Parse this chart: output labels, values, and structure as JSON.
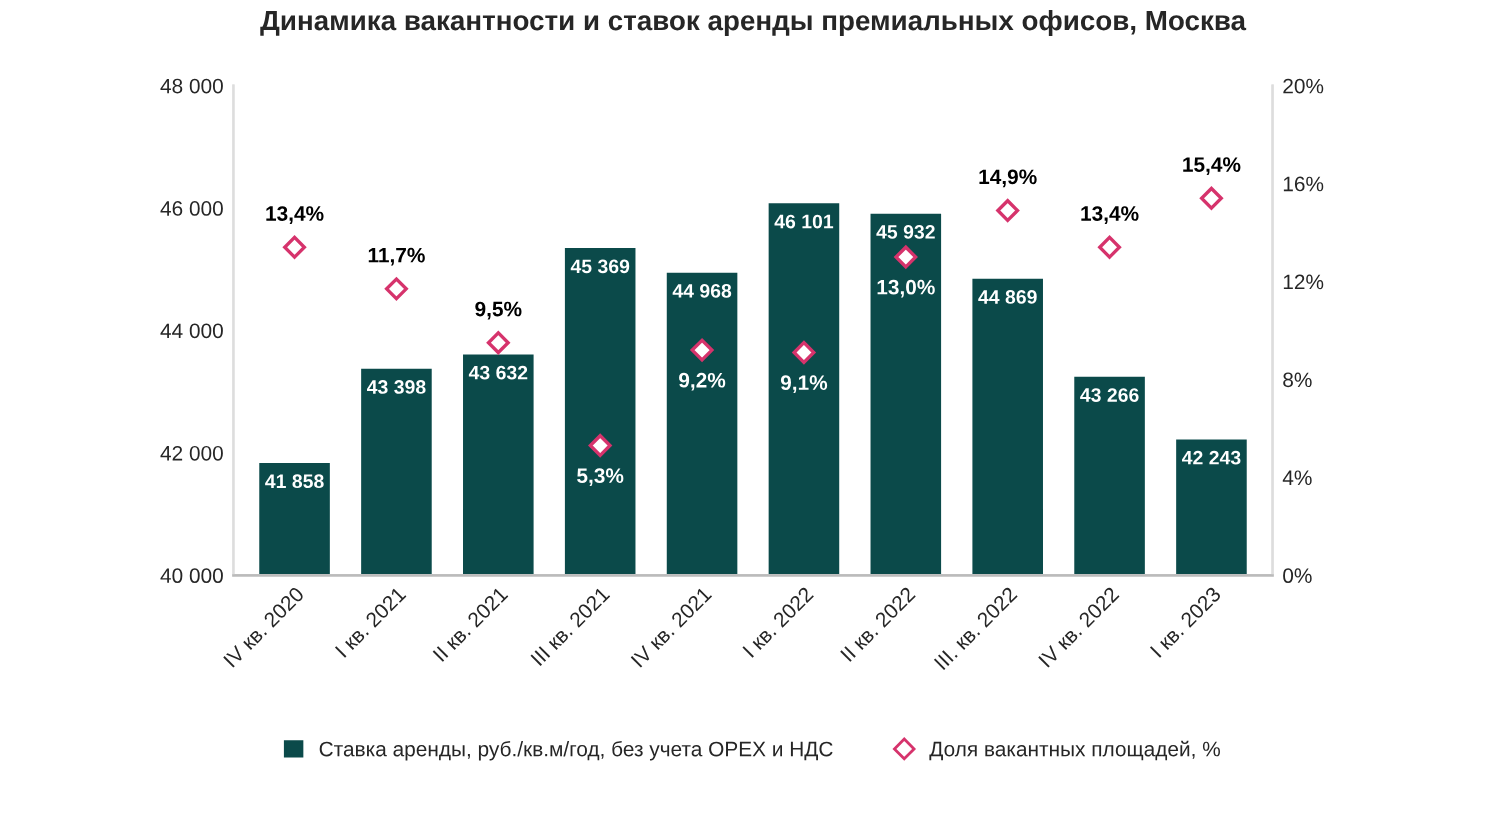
{
  "chart_data": {
    "type": "bar",
    "title": "Динамика вакантности и ставок аренды премиальных офисов, Москва",
    "categories": [
      "IV кв. 2020",
      "I кв. 2021",
      "II кв. 2021",
      "III кв. 2021",
      "IV кв. 2021",
      "I кв. 2022",
      "II кв. 2022",
      "III. кв. 2022",
      "IV кв. 2022",
      "I кв. 2023"
    ],
    "series": [
      {
        "name": "Ставка аренды, руб./кв.м/год, без учета OPEX и НДС",
        "color": "#0b4a4a",
        "values": [
          41858,
          43398,
          43632,
          45369,
          44968,
          46101,
          45932,
          44869,
          43266,
          42243
        ],
        "value_labels": [
          "41 858",
          "43 398",
          "43 632",
          "45 369",
          "44 968",
          "46 101",
          "45 932",
          "44 869",
          "43 266",
          "42 243"
        ]
      },
      {
        "name": "Доля вакантных площадей, %",
        "type": "scatter",
        "axis": "y2",
        "marker": "diamond",
        "color": "#d6336c",
        "values": [
          13.4,
          11.7,
          9.5,
          5.3,
          9.2,
          9.1,
          13.0,
          14.9,
          13.4,
          15.4
        ],
        "value_labels": [
          "13,4%",
          "11,7%",
          "9,5%",
          "5,3%",
          "9,2%",
          "9,1%",
          "13,0%",
          "14,9%",
          "13,4%",
          "15,4%"
        ]
      }
    ],
    "ylim": [
      40000,
      48000
    ],
    "yticks": [
      {
        "value": 40000,
        "label": "40 000"
      },
      {
        "value": 42000,
        "label": "42 000"
      },
      {
        "value": 44000,
        "label": "44 000"
      },
      {
        "value": 46000,
        "label": "46 000"
      },
      {
        "value": 48000,
        "label": "48 000"
      }
    ],
    "y2lim": [
      0,
      20
    ],
    "y2ticks": [
      {
        "value": 0,
        "label": "0%"
      },
      {
        "value": 4,
        "label": "4%"
      },
      {
        "value": 8,
        "label": "8%"
      },
      {
        "value": 12,
        "label": "12%"
      },
      {
        "value": 16,
        "label": "16%"
      },
      {
        "value": 20,
        "label": "20%"
      }
    ],
    "grid": false,
    "legend": "bottom"
  }
}
